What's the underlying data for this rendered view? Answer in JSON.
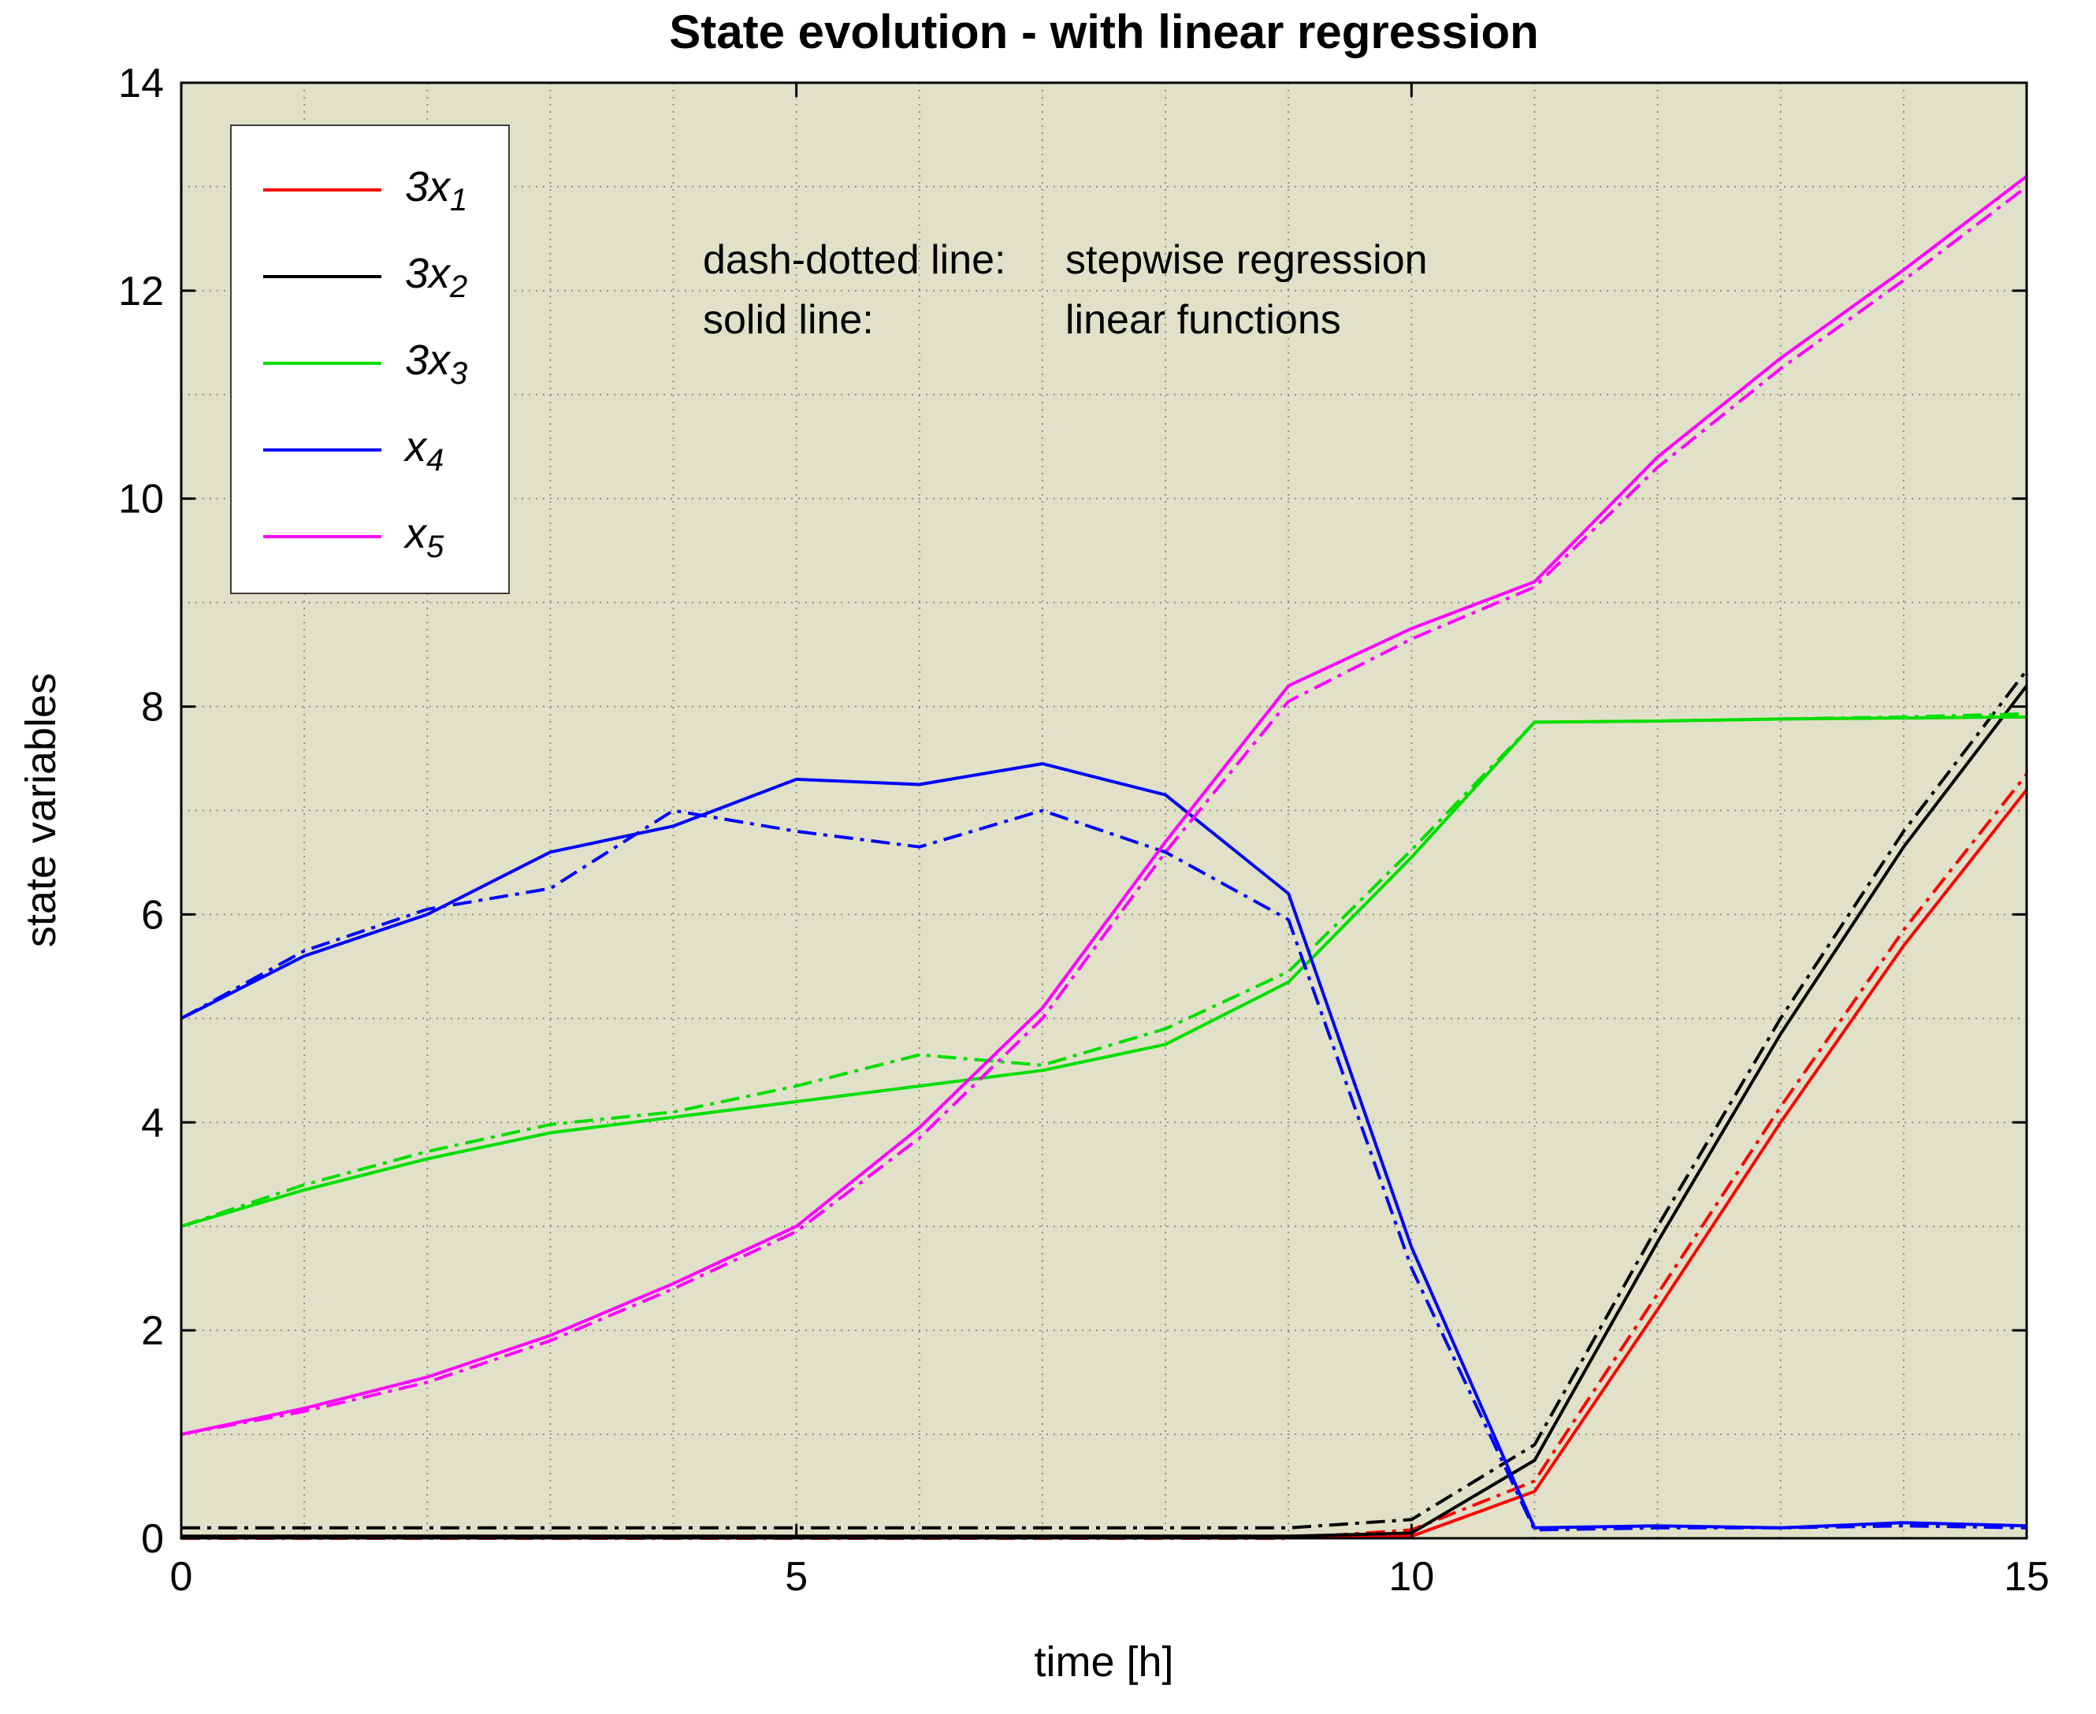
{
  "chart_data": {
    "type": "line",
    "title": "State evolution - with linear regression",
    "xlabel": "time [h]",
    "ylabel": "state variables",
    "xlim": [
      0,
      15
    ],
    "ylim": [
      0,
      14
    ],
    "xticks": [
      0,
      5,
      10,
      15
    ],
    "yticks": [
      0,
      2,
      4,
      6,
      8,
      10,
      12,
      14
    ],
    "grid": "dotted minor grid every 1 unit on both axes",
    "legend_position": "top-left",
    "colors": {
      "plot_background": "#e0e1c8",
      "grid": "#8f8f82",
      "axis": "#000000"
    },
    "line_styles": {
      "solid_meaning": "linear functions",
      "dashdot_meaning": "stepwise regression"
    },
    "x": [
      0,
      1,
      2,
      3,
      4,
      5,
      6,
      7,
      8,
      9,
      10,
      11,
      12,
      13,
      14,
      15
    ],
    "series": [
      {
        "name": "3x1",
        "label_main": "3x",
        "label_sub": "1",
        "color": "#ff0000",
        "solid": [
          0.02,
          0.02,
          0.02,
          0.02,
          0.02,
          0.02,
          0.02,
          0.02,
          0.02,
          0.02,
          0.02,
          0.45,
          2.2,
          4.0,
          5.7,
          7.2
        ],
        "dashdot": [
          0.0,
          0.0,
          0.0,
          0.0,
          0.0,
          0.0,
          0.0,
          0.0,
          0.0,
          0.0,
          0.08,
          0.55,
          2.35,
          4.15,
          5.85,
          7.35
        ]
      },
      {
        "name": "3x2",
        "label_main": "3x",
        "label_sub": "2",
        "color": "#000000",
        "solid": [
          0.02,
          0.02,
          0.02,
          0.02,
          0.02,
          0.02,
          0.02,
          0.02,
          0.02,
          0.02,
          0.05,
          0.75,
          2.85,
          4.85,
          6.65,
          8.2
        ],
        "dashdot": [
          0.1,
          0.1,
          0.1,
          0.1,
          0.1,
          0.1,
          0.1,
          0.1,
          0.1,
          0.1,
          0.18,
          0.9,
          3.0,
          5.0,
          6.8,
          8.35
        ]
      },
      {
        "name": "3x3",
        "label_main": "3x",
        "label_sub": "3",
        "color": "#00dd00",
        "solid": [
          3.0,
          3.35,
          3.65,
          3.9,
          4.05,
          4.2,
          4.35,
          4.5,
          4.75,
          5.35,
          6.55,
          7.85,
          7.86,
          7.88,
          7.89,
          7.9
        ],
        "dashdot": [
          3.0,
          3.4,
          3.72,
          3.98,
          4.1,
          4.35,
          4.65,
          4.55,
          4.9,
          5.45,
          6.62,
          7.85,
          7.86,
          7.88,
          7.9,
          7.93
        ]
      },
      {
        "name": "x4",
        "label_main": "x",
        "label_sub": "4",
        "color": "#0000ff",
        "solid": [
          5.0,
          5.6,
          6.0,
          6.6,
          6.85,
          7.3,
          7.25,
          7.45,
          7.15,
          6.2,
          2.8,
          0.1,
          0.12,
          0.1,
          0.15,
          0.12
        ],
        "dashdot": [
          5.0,
          5.65,
          6.05,
          6.25,
          7.0,
          6.8,
          6.65,
          7.0,
          6.6,
          5.95,
          2.6,
          0.08,
          0.1,
          0.1,
          0.12,
          0.1
        ]
      },
      {
        "name": "x5",
        "label_main": "x",
        "label_sub": "5",
        "color": "#ff00ff",
        "solid": [
          1.0,
          1.25,
          1.55,
          1.95,
          2.45,
          3.0,
          3.95,
          5.1,
          6.7,
          8.2,
          8.75,
          9.2,
          10.4,
          11.35,
          12.2,
          13.1
        ],
        "dashdot": [
          1.0,
          1.22,
          1.5,
          1.9,
          2.4,
          2.95,
          3.85,
          5.0,
          6.6,
          8.05,
          8.65,
          9.15,
          10.3,
          11.25,
          12.1,
          13.0
        ]
      }
    ],
    "annotation": {
      "rows": [
        {
          "label": "dash-dotted line:",
          "value": "stepwise regression"
        },
        {
          "label": "solid line:",
          "value": "linear functions"
        }
      ]
    }
  }
}
